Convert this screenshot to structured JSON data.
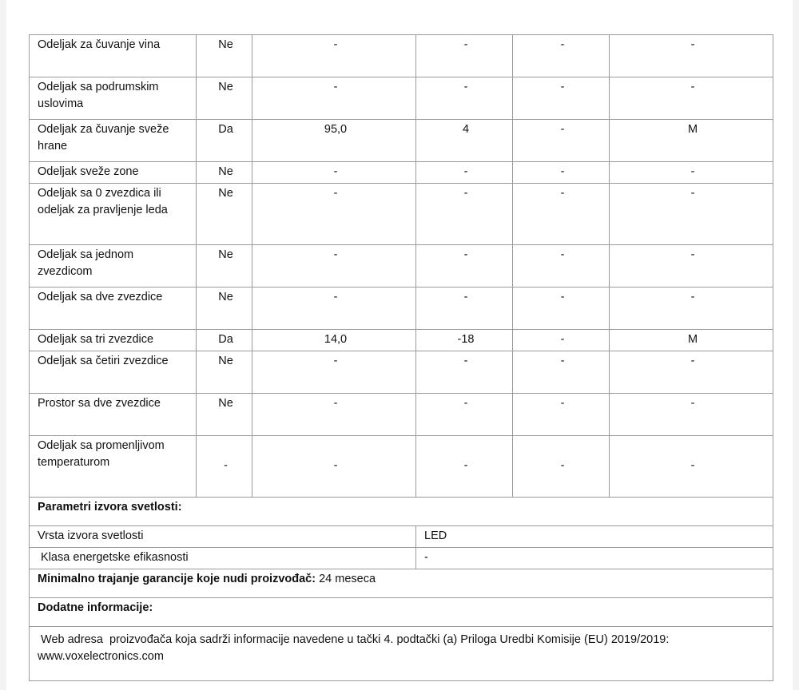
{
  "compartments": [
    {
      "name": "Odeljak za čuvanje vina",
      "present": "Ne",
      "volume": "-",
      "temp": "-",
      "c4": "-",
      "c5": "-"
    },
    {
      "name": "Odeljak sa podrumskim uslovima",
      "present": "Ne",
      "volume": "-",
      "temp": "-",
      "c4": "-",
      "c5": "-"
    },
    {
      "name": "Odeljak za čuvanje sveže hrane",
      "present": "Da",
      "volume": "95,0",
      "temp": "4",
      "c4": "-",
      "c5": "M"
    },
    {
      "name": "Odeljak sveže zone",
      "present": "Ne",
      "volume": "-",
      "temp": "-",
      "c4": "-",
      "c5": "-"
    },
    {
      "name": "Odeljak sa 0 zvezdica ili odeljak za pravljenje leda",
      "present": "Ne",
      "volume": "-",
      "temp": "-",
      "c4": "-",
      "c5": "-"
    },
    {
      "name": "Odeljak sa jednom zvezdicom",
      "present": "Ne",
      "volume": "-",
      "temp": "-",
      "c4": "-",
      "c5": "-"
    },
    {
      "name": "Odeljak sa dve zvezdice",
      "present": "Ne",
      "volume": "-",
      "temp": "-",
      "c4": "-",
      "c5": "-"
    },
    {
      "name": "Odeljak sa tri zvezdice",
      "present": "Da",
      "volume": "14,0",
      "temp": "-18",
      "c4": "-",
      "c5": "M"
    },
    {
      "name": "Odeljak sa četiri zvezdice",
      "present": "Ne",
      "volume": "-",
      "temp": "-",
      "c4": "-",
      "c5": "-"
    },
    {
      "name": "Prostor sa dve zvezdice",
      "present": "Ne",
      "volume": "-",
      "temp": "-",
      "c4": "-",
      "c5": "-"
    },
    {
      "name": "Odeljak sa promenljivom temperaturom",
      "present": "-",
      "volume": "-",
      "temp": "-",
      "c4": "-",
      "c5": "-"
    }
  ],
  "light": {
    "heading": "Parametri izvora svetlosti:",
    "type_label": "Vrsta izvora svetlosti",
    "type_value": "LED",
    "class_label": " Klasa energetske efikasnosti",
    "class_value": "-"
  },
  "warranty": {
    "label": "Minimalno trajanje garancije koje nudi proizvođač:",
    "value": " 24 meseca"
  },
  "additional": {
    "heading": "Dodatne informacije:",
    "text": " Web adresa  proizvođača koja sadrži informacije navedene u tački 4. podtački (a) Priloga Uredbi Komisije (EU) 2019/2019:  www.voxelectronics.com"
  }
}
